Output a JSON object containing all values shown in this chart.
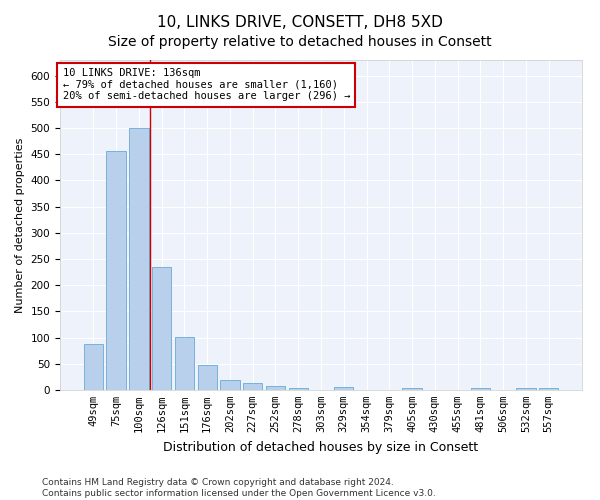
{
  "title": "10, LINKS DRIVE, CONSETT, DH8 5XD",
  "subtitle": "Size of property relative to detached houses in Consett",
  "xlabel": "Distribution of detached houses by size in Consett",
  "ylabel": "Number of detached properties",
  "bar_color": "#b8d0eb",
  "bar_edge_color": "#6aaad4",
  "categories": [
    "49sqm",
    "75sqm",
    "100sqm",
    "126sqm",
    "151sqm",
    "176sqm",
    "202sqm",
    "227sqm",
    "252sqm",
    "278sqm",
    "303sqm",
    "329sqm",
    "354sqm",
    "379sqm",
    "405sqm",
    "430sqm",
    "455sqm",
    "481sqm",
    "506sqm",
    "532sqm",
    "557sqm"
  ],
  "values": [
    88,
    457,
    500,
    235,
    102,
    47,
    20,
    13,
    8,
    4,
    0,
    5,
    0,
    0,
    4,
    0,
    0,
    4,
    0,
    4,
    4
  ],
  "vline_x": 2.5,
  "vline_color": "#cc0000",
  "annotation_text": "10 LINKS DRIVE: 136sqm\n← 79% of detached houses are smaller (1,160)\n20% of semi-detached houses are larger (296) →",
  "annotation_box_color": "white",
  "annotation_box_edge_color": "#cc0000",
  "ylim": [
    0,
    630
  ],
  "yticks": [
    0,
    50,
    100,
    150,
    200,
    250,
    300,
    350,
    400,
    450,
    500,
    550,
    600
  ],
  "background_color": "#eef2fa",
  "grid_color": "white",
  "footer_text": "Contains HM Land Registry data © Crown copyright and database right 2024.\nContains public sector information licensed under the Open Government Licence v3.0.",
  "title_fontsize": 11,
  "xlabel_fontsize": 9,
  "ylabel_fontsize": 8,
  "tick_fontsize": 7.5,
  "annotation_fontsize": 7.5,
  "footer_fontsize": 6.5
}
